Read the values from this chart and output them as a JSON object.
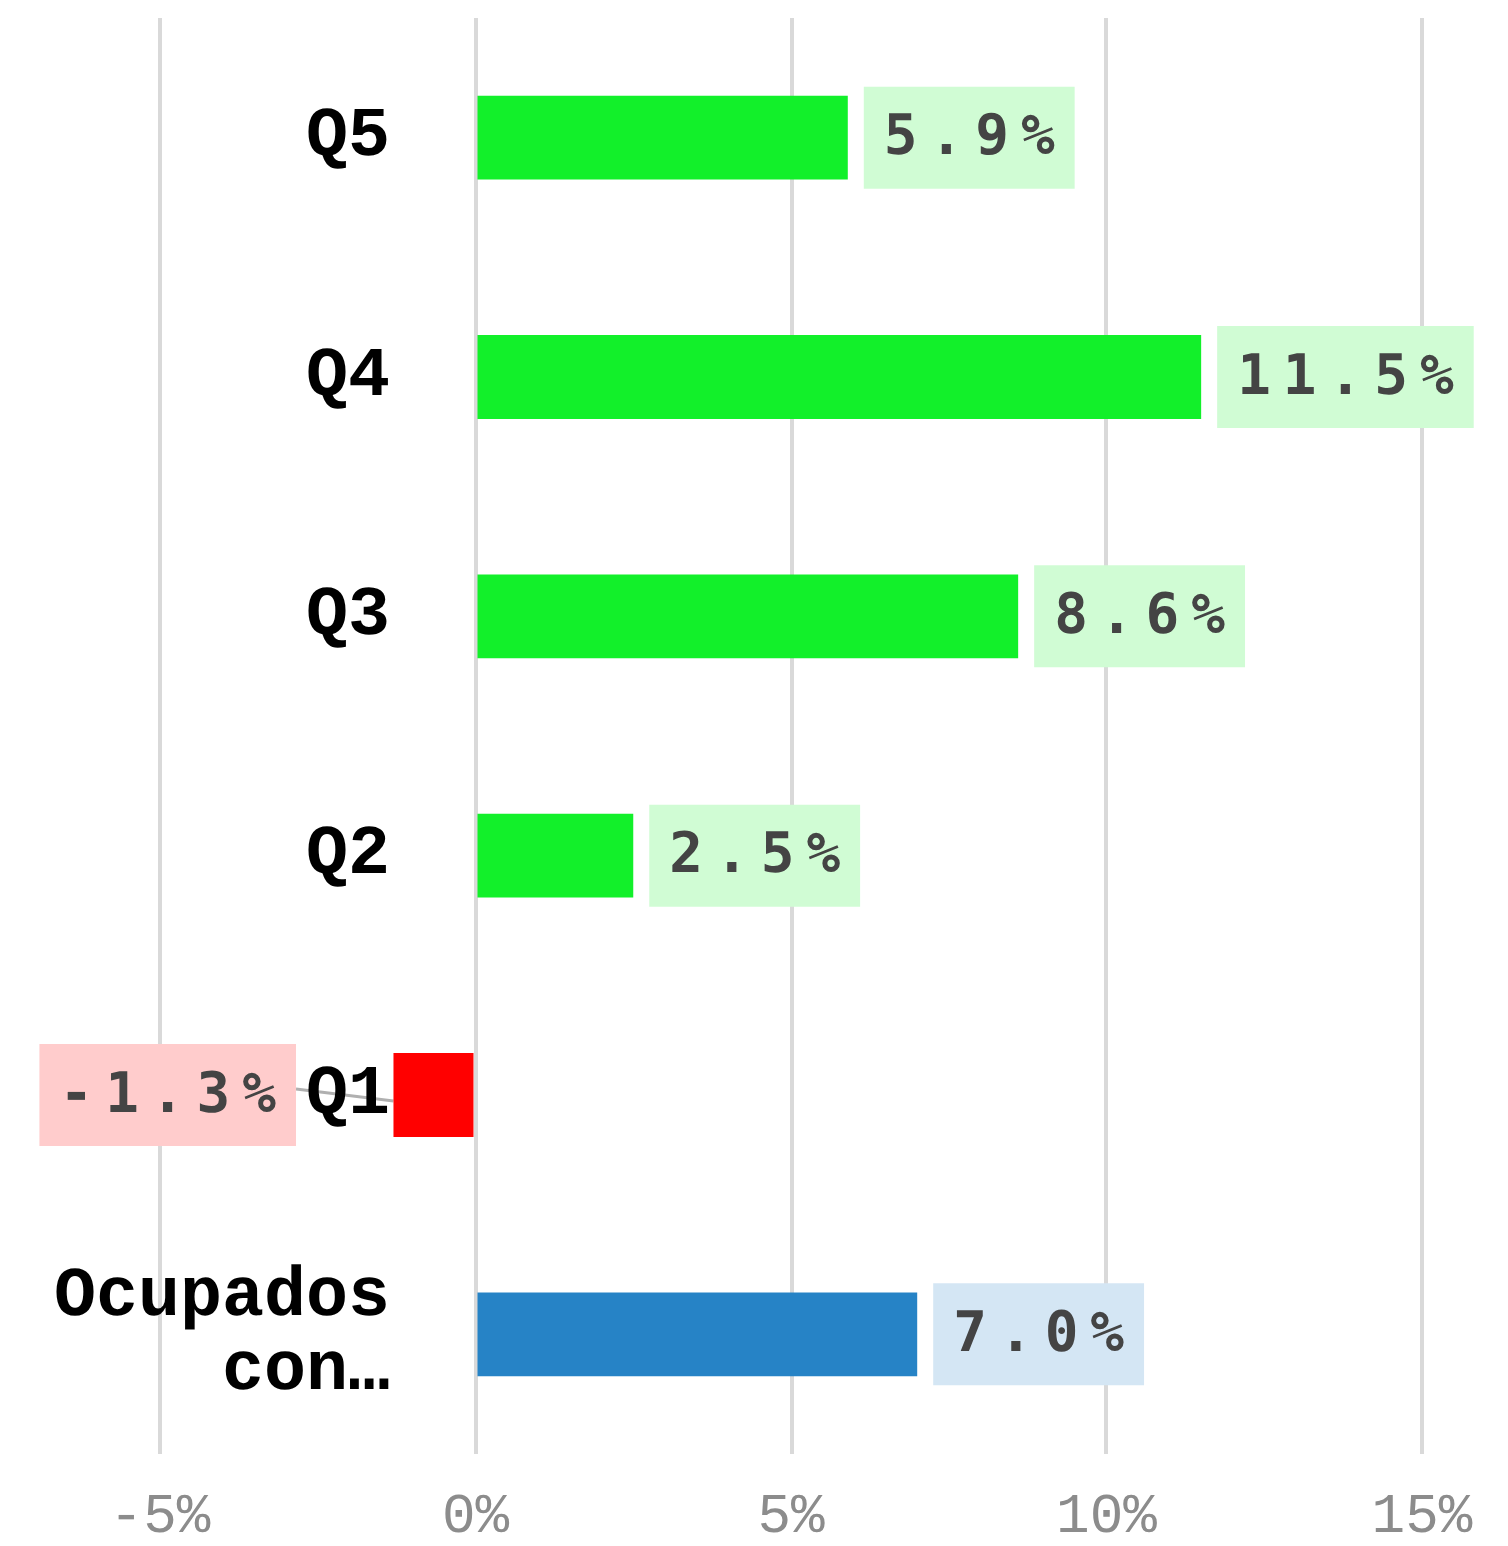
{
  "chart_data": {
    "type": "bar",
    "orientation": "horizontal",
    "categories": [
      "Q5",
      "Q4",
      "Q3",
      "Q2",
      "Q1",
      "Ocupados con…"
    ],
    "values": [
      5.9,
      11.5,
      8.6,
      2.5,
      -1.3,
      7.0
    ],
    "colors": [
      "#12f02a",
      "#12f02a",
      "#12f02a",
      "#12f02a",
      "#ff0000",
      "#2683c6"
    ],
    "value_labels": [
      "5.9%",
      "11.5%",
      "8.6%",
      "2.5%",
      "-1.3%",
      "7.0%"
    ],
    "xlim": [
      -5,
      15
    ],
    "xticks": [
      {
        "value": -5,
        "label": "-5%"
      },
      {
        "value": 0,
        "label": "0%"
      },
      {
        "value": 5,
        "label": "5%"
      },
      {
        "value": 10,
        "label": "10%"
      },
      {
        "value": 15,
        "label": "15%"
      }
    ],
    "grid": "x"
  }
}
